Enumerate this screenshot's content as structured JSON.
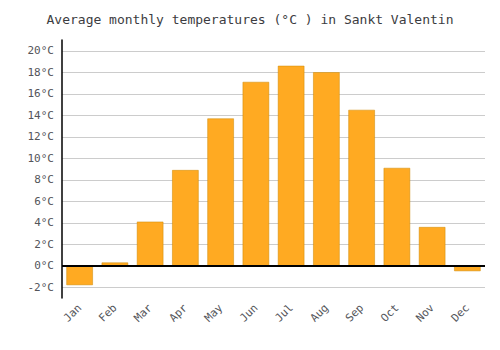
{
  "chart_data": {
    "type": "bar",
    "title": "Average monthly temperatures (°C ) in Sankt Valentin",
    "categories": [
      "Jan",
      "Feb",
      "Mar",
      "Apr",
      "May",
      "Jun",
      "Jul",
      "Aug",
      "Sep",
      "Oct",
      "Nov",
      "Dec"
    ],
    "values": [
      -1.8,
      0.3,
      4.1,
      8.9,
      13.7,
      17.1,
      18.6,
      18.0,
      14.5,
      9.1,
      3.6,
      -0.5
    ],
    "color": "#FFAA22",
    "ylim": [
      -3,
      21
    ],
    "yticks": [
      {
        "value": -2,
        "label": "-2°C"
      },
      {
        "value": 0,
        "label": "0°C"
      },
      {
        "value": 2,
        "label": "2°C"
      },
      {
        "value": 4,
        "label": "4°C"
      },
      {
        "value": 6,
        "label": "6°C"
      },
      {
        "value": 8,
        "label": "8°C"
      },
      {
        "value": 10,
        "label": "10°C"
      },
      {
        "value": 12,
        "label": "12°C"
      },
      {
        "value": 14,
        "label": "14°C"
      },
      {
        "value": 16,
        "label": "16°C"
      },
      {
        "value": 18,
        "label": "18°C"
      },
      {
        "value": 20,
        "label": "20°C"
      }
    ],
    "grid": true
  }
}
